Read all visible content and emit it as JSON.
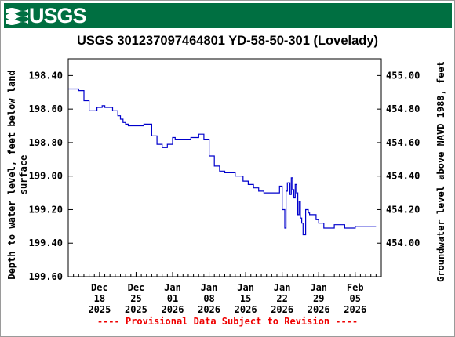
{
  "header": {
    "logo_text": "USGS",
    "brand_color": "#006f41"
  },
  "chart_data": {
    "type": "line",
    "title": "USGS 301237097464801 YD-58-50-301 (Lovelady)",
    "ylabel_left": [
      "Depth to water level, feet below land",
      "surface"
    ],
    "ylabel_right": "Groundwater level above NAVD 1988, feet",
    "ylim_left": [
      198.3,
      199.6
    ],
    "y_left_inverted": true,
    "y_left_ticks": [
      "198.40",
      "198.60",
      "198.80",
      "199.00",
      "199.20",
      "199.40",
      "199.60"
    ],
    "ylim_right": [
      455.1,
      453.8
    ],
    "y_right_ticks": [
      "455.00",
      "454.80",
      "454.60",
      "454.40",
      "454.20",
      "454.00"
    ],
    "x_ticks": [
      {
        "month": "Dec",
        "day": "18",
        "year": "2025"
      },
      {
        "month": "Dec",
        "day": "25",
        "year": "2025"
      },
      {
        "month": "Jan",
        "day": "01",
        "year": "2026"
      },
      {
        "month": "Jan",
        "day": "08",
        "year": "2026"
      },
      {
        "month": "Jan",
        "day": "15",
        "year": "2026"
      },
      {
        "month": "Jan",
        "day": "22",
        "year": "2026"
      },
      {
        "month": "Jan",
        "day": "29",
        "year": "2026"
      },
      {
        "month": "Feb",
        "day": "05",
        "year": "2026"
      }
    ],
    "xlim": [
      "2025-12-12",
      "2026-02-10"
    ],
    "grid": false,
    "line_color": "#0000cc",
    "series": [
      {
        "x": [
          "2025-12-12",
          "2025-12-13",
          "2025-12-14",
          "2025-12-15",
          "2025-12-16",
          "2025-12-17",
          "2025-12-17 12:00",
          "2025-12-18 12:00",
          "2025-12-19",
          "2025-12-19 12:00",
          "2025-12-20 12:00",
          "2025-12-21 12:00",
          "2025-12-22",
          "2025-12-22 12:00",
          "2025-12-23",
          "2025-12-23 12:00",
          "2025-12-24 12:00",
          "2025-12-26 12:00",
          "2025-12-28",
          "2025-12-29",
          "2025-12-30",
          "2025-12-31",
          "2026-01-01",
          "2026-01-01 12:00",
          "2026-01-02 12:00",
          "2026-01-03 12:00",
          "2026-01-04 12:00",
          "2026-01-06",
          "2026-01-07",
          "2026-01-08",
          "2026-01-09",
          "2026-01-10",
          "2026-01-11",
          "2026-01-12",
          "2026-01-13",
          "2026-01-14 12:00",
          "2026-01-15 12:00",
          "2026-01-16 12:00",
          "2026-01-17 12:00",
          "2026-01-18 12:00",
          "2026-01-19 12:00",
          "2026-01-20 12:00",
          "2026-01-21 12:00",
          "2026-01-22",
          "2026-01-22 12:00",
          "2026-01-22 18:00",
          "2026-01-23",
          "2026-01-23 12:00",
          "2026-01-23 18:00",
          "2026-01-24",
          "2026-01-24 06:00",
          "2026-01-24 12:00",
          "2026-01-24 18:00",
          "2026-01-25",
          "2026-01-25 06:00",
          "2026-01-25 12:00",
          "2026-01-25 18:00",
          "2026-01-26",
          "2026-01-26 12:00",
          "2026-01-27",
          "2026-01-27 06:00",
          "2026-01-27 12:00",
          "2026-01-28",
          "2026-01-28 12:00",
          "2026-01-29",
          "2026-01-30",
          "2026-01-31",
          "2026-02-01",
          "2026-02-02",
          "2026-02-03",
          "2026-02-04",
          "2026-02-05",
          "2026-02-06",
          "2026-02-07",
          "2026-02-08",
          "2026-02-09"
        ],
        "y": [
          198.48,
          198.48,
          198.49,
          198.55,
          198.61,
          198.61,
          198.59,
          198.58,
          198.59,
          198.59,
          198.61,
          198.64,
          198.66,
          198.68,
          198.69,
          198.7,
          198.7,
          198.69,
          198.76,
          198.81,
          198.83,
          198.81,
          198.77,
          198.78,
          198.78,
          198.78,
          198.77,
          198.75,
          198.78,
          198.88,
          198.94,
          198.97,
          198.98,
          198.98,
          199.0,
          199.03,
          199.05,
          199.07,
          199.09,
          199.1,
          199.1,
          199.1,
          199.06,
          199.2,
          199.31,
          199.09,
          199.04,
          199.11,
          199.01,
          199.08,
          199.13,
          199.05,
          199.1,
          199.23,
          199.15,
          199.25,
          199.28,
          199.35,
          199.2,
          199.22,
          199.23,
          199.23,
          199.23,
          199.26,
          199.28,
          199.31,
          199.31,
          199.29,
          199.29,
          199.31,
          199.31,
          199.3,
          199.3,
          199.3,
          199.3,
          199.3
        ]
      }
    ]
  },
  "footer": {
    "note": "---- Provisional Data Subject to Revision ----"
  }
}
